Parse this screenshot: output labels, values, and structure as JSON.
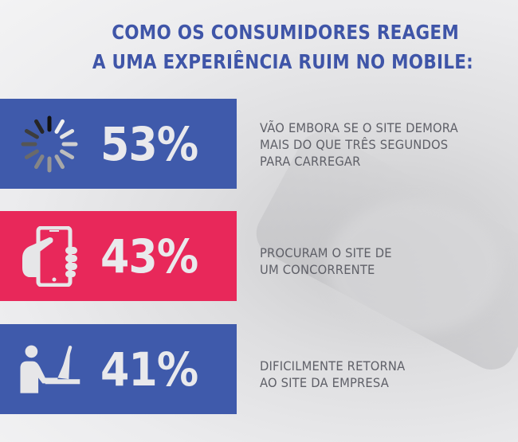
{
  "title": {
    "line1": "COMO OS CONSUMIDORES REAGEM",
    "line2": "A UMA EXPERIÊNCIA RUIM NO MOBILE:"
  },
  "colors": {
    "blue": "#3f5aab",
    "pink": "#e8285a",
    "title": "#3f55a8",
    "text": "#5f6068"
  },
  "stats": [
    {
      "icon": "loading-spinner-icon",
      "percent": "53%",
      "value": 53,
      "lines": [
        "VÃO EMBORA SE O SITE DEMORA",
        "MAIS DO QUE TRÊS SEGUNDOS",
        "PARA CARREGAR"
      ]
    },
    {
      "icon": "hand-holding-phone-icon",
      "percent": "43%",
      "value": 43,
      "lines": [
        "PROCURAM O SITE DE",
        "UM CONCORRENTE"
      ]
    },
    {
      "icon": "person-at-computer-icon",
      "percent": "41%",
      "value": 41,
      "lines": [
        "DIFICILMENTE RETORNA",
        "AO SITE DA EMPRESA"
      ]
    }
  ]
}
